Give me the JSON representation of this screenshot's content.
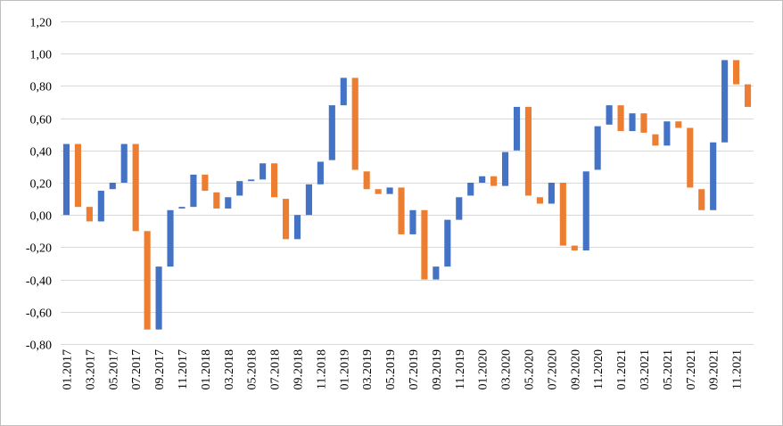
{
  "chart_data": {
    "type": "bar",
    "subtype": "waterfall",
    "title": "",
    "xlabel": "",
    "ylabel": "",
    "ylim": [
      -0.8,
      1.2
    ],
    "y_tick_step": 0.2,
    "y_tick_labels": [
      "-0,80",
      "-0,60",
      "-0,40",
      "-0,20",
      "0,00",
      "0,20",
      "0,40",
      "0,60",
      "0,80",
      "1,00",
      "1,20"
    ],
    "grid": true,
    "legend": "none",
    "colors": {
      "increase": "#4472c4",
      "decrease": "#ed7d31",
      "grid": "#d9d9d9",
      "frame": "#bfbfbf"
    },
    "x_tick_labels": [
      "01.2017",
      "03.2017",
      "05.2017",
      "07.2017",
      "09.2017",
      "11.2017",
      "01.2018",
      "03.2018",
      "05.2018",
      "07.2018",
      "09.2018",
      "11.2018",
      "01.2019",
      "03.2019",
      "05.2019",
      "07.2019",
      "09.2019",
      "11.2019",
      "01.2020",
      "03.2020",
      "05.2020",
      "07.2020",
      "09.2020",
      "11.2020",
      "01.2021",
      "03.2021",
      "05.2021",
      "07.2021",
      "09.2021",
      "11.2021"
    ],
    "bars": [
      {
        "x": "01.2017",
        "start": 0.0,
        "end": 0.44
      },
      {
        "x": "02.2017",
        "start": 0.44,
        "end": 0.05
      },
      {
        "x": "03.2017",
        "start": 0.05,
        "end": -0.04
      },
      {
        "x": "04.2017",
        "start": -0.04,
        "end": 0.15
      },
      {
        "x": "05.2017",
        "start": 0.16,
        "end": 0.2
      },
      {
        "x": "06.2017",
        "start": 0.2,
        "end": 0.44
      },
      {
        "x": "07.2017",
        "start": 0.44,
        "end": -0.1
      },
      {
        "x": "08.2017",
        "start": -0.1,
        "end": -0.71
      },
      {
        "x": "09.2017",
        "start": -0.71,
        "end": -0.32
      },
      {
        "x": "10.2017",
        "start": -0.32,
        "end": 0.03
      },
      {
        "x": "11.2017",
        "start": 0.04,
        "end": 0.05
      },
      {
        "x": "12.2017",
        "start": 0.05,
        "end": 0.25
      },
      {
        "x": "01.2018",
        "start": 0.25,
        "end": 0.15
      },
      {
        "x": "02.2018",
        "start": 0.14,
        "end": 0.04
      },
      {
        "x": "03.2018",
        "start": 0.04,
        "end": 0.11
      },
      {
        "x": "04.2018",
        "start": 0.12,
        "end": 0.21
      },
      {
        "x": "05.2018",
        "start": 0.21,
        "end": 0.22
      },
      {
        "x": "06.2018",
        "start": 0.22,
        "end": 0.32
      },
      {
        "x": "07.2018",
        "start": 0.32,
        "end": 0.11
      },
      {
        "x": "08.2018",
        "start": 0.1,
        "end": -0.15
      },
      {
        "x": "09.2018",
        "start": -0.15,
        "end": 0.0
      },
      {
        "x": "10.2018",
        "start": 0.0,
        "end": 0.19
      },
      {
        "x": "11.2018",
        "start": 0.19,
        "end": 0.33
      },
      {
        "x": "12.2018",
        "start": 0.34,
        "end": 0.68
      },
      {
        "x": "01.2019",
        "start": 0.68,
        "end": 0.85
      },
      {
        "x": "02.2019",
        "start": 0.85,
        "end": 0.28
      },
      {
        "x": "03.2019",
        "start": 0.27,
        "end": 0.16
      },
      {
        "x": "04.2019",
        "start": 0.16,
        "end": 0.13
      },
      {
        "x": "05.2019",
        "start": 0.13,
        "end": 0.17
      },
      {
        "x": "06.2019",
        "start": 0.17,
        "end": -0.12
      },
      {
        "x": "07.2019",
        "start": -0.12,
        "end": 0.03
      },
      {
        "x": "08.2019",
        "start": 0.03,
        "end": -0.4
      },
      {
        "x": "09.2019",
        "start": -0.4,
        "end": -0.32
      },
      {
        "x": "10.2019",
        "start": -0.32,
        "end": -0.03
      },
      {
        "x": "11.2019",
        "start": -0.03,
        "end": 0.11
      },
      {
        "x": "12.2019",
        "start": 0.12,
        "end": 0.2
      },
      {
        "x": "01.2020",
        "start": 0.2,
        "end": 0.24
      },
      {
        "x": "02.2020",
        "start": 0.24,
        "end": 0.18
      },
      {
        "x": "03.2020",
        "start": 0.18,
        "end": 0.39
      },
      {
        "x": "04.2020",
        "start": 0.4,
        "end": 0.67
      },
      {
        "x": "05.2020",
        "start": 0.67,
        "end": 0.12
      },
      {
        "x": "06.2020",
        "start": 0.11,
        "end": 0.07
      },
      {
        "x": "07.2020",
        "start": 0.07,
        "end": 0.2
      },
      {
        "x": "08.2020",
        "start": 0.2,
        "end": -0.19
      },
      {
        "x": "09.2020",
        "start": -0.19,
        "end": -0.22
      },
      {
        "x": "10.2020",
        "start": -0.22,
        "end": 0.27
      },
      {
        "x": "11.2020",
        "start": 0.28,
        "end": 0.55
      },
      {
        "x": "12.2020",
        "start": 0.56,
        "end": 0.68
      },
      {
        "x": "01.2021",
        "start": 0.68,
        "end": 0.52
      },
      {
        "x": "02.2021",
        "start": 0.52,
        "end": 0.63
      },
      {
        "x": "03.2021",
        "start": 0.63,
        "end": 0.51
      },
      {
        "x": "04.2021",
        "start": 0.5,
        "end": 0.43
      },
      {
        "x": "05.2021",
        "start": 0.43,
        "end": 0.58
      },
      {
        "x": "06.2021",
        "start": 0.58,
        "end": 0.54
      },
      {
        "x": "07.2021",
        "start": 0.54,
        "end": 0.17
      },
      {
        "x": "08.2021",
        "start": 0.16,
        "end": 0.03
      },
      {
        "x": "09.2021",
        "start": 0.03,
        "end": 0.45
      },
      {
        "x": "10.2021",
        "start": 0.45,
        "end": 0.96
      },
      {
        "x": "11.2021",
        "start": 0.96,
        "end": 0.81
      },
      {
        "x": "12.2021",
        "start": 0.81,
        "end": 0.67
      }
    ]
  }
}
